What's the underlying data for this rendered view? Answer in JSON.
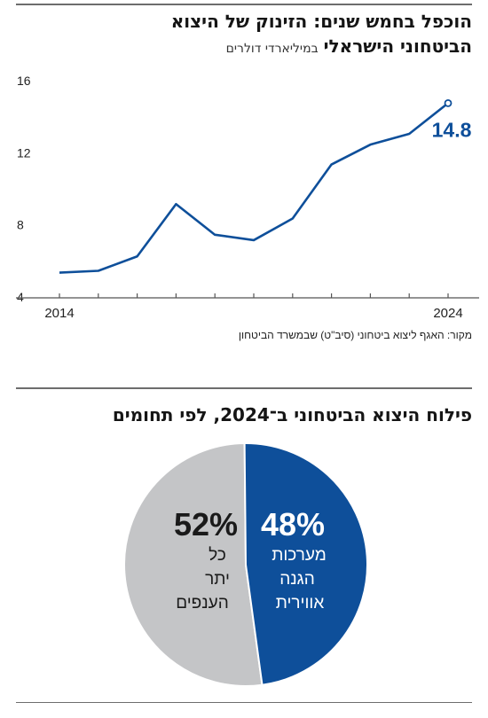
{
  "line_chart": {
    "title_line1": "הוכפל בחמש שנים: הזינוק של היצוא",
    "title_line2": "הביטחוני הישראלי",
    "subtitle": "במיליארדי דולרים",
    "source": "מקור: האגף ליצוא ביטחוני (סיב\"ט) שבמשרד הביטחון",
    "last_value_label": "14.8"
  },
  "pie_chart": {
    "title": "פילוח היצוא הביטחוני ב־2024, לפי תחומים",
    "slice_air_pct": "48%",
    "slice_air_label": [
      "מערכות",
      "הגנה",
      "אווירית"
    ],
    "slice_other_pct": "52%",
    "slice_other_label": [
      "כל",
      "יתר",
      "הענפים"
    ]
  },
  "colors": {
    "line": "#0e4f9a",
    "pie_air": "#0e4f9a",
    "pie_other": "#c4c5c7",
    "axis": "#555555"
  },
  "chart_data": [
    {
      "type": "line",
      "x": [
        2014,
        2015,
        2016,
        2017,
        2018,
        2019,
        2020,
        2021,
        2022,
        2023,
        2024
      ],
      "series": [
        {
          "values": [
            5.4,
            5.5,
            6.3,
            9.2,
            7.5,
            7.2,
            8.4,
            11.4,
            12.5,
            13.1,
            14.8
          ]
        }
      ],
      "x_tick_labels": [
        "2014",
        "2024"
      ],
      "y_ticks": [
        4,
        8,
        12,
        16
      ],
      "ylim": [
        4,
        16
      ],
      "xlim": [
        2014,
        2024
      ],
      "title": "הוכפל בחמש שנים: הזינוק של היצוא הביטחוני הישראלי",
      "ylabel": "במיליארדי דולרים",
      "grid": false
    },
    {
      "type": "pie",
      "categories": [
        "מערכות הגנה אווירית",
        "כל יתר הענפים"
      ],
      "values": [
        48,
        52
      ],
      "title": "פילוח היצוא הביטחוני ב־2024, לפי תחומים"
    }
  ]
}
